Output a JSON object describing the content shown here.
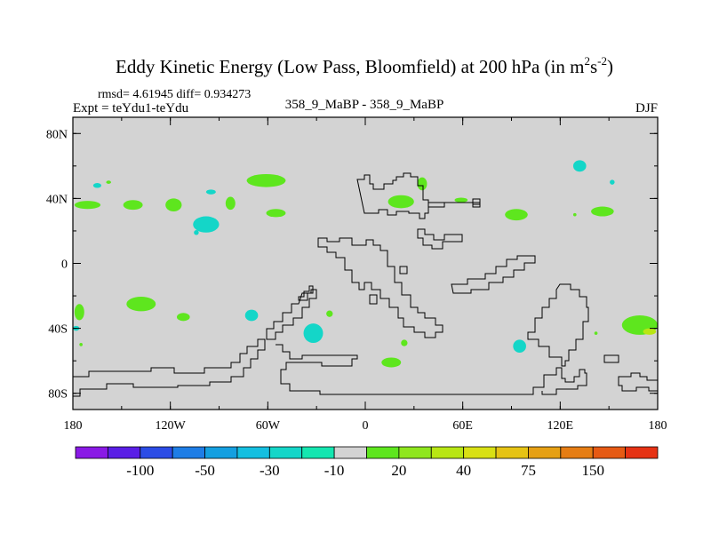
{
  "chart_data": {
    "type": "heatmap",
    "title_main": "Eddy Kinetic Energy (Low Pass, Bloomfield) at 200 hPa (in m",
    "title_sup1": "2",
    "title_mid": "s",
    "title_sup2": "-2",
    "title_end": ")",
    "stats": "rmsd= 4.61945 diff= 0.934273",
    "expt_label": "Expt = teYdu1-teYdu",
    "center_label": "358_9_MaBP - 358_9_MaBP",
    "season_label": "DJF",
    "x_ticks": [
      {
        "v": -180,
        "label": "180"
      },
      {
        "v": -120,
        "label": "120W"
      },
      {
        "v": -60,
        "label": "60W"
      },
      {
        "v": 0,
        "label": "0"
      },
      {
        "v": 60,
        "label": "60E"
      },
      {
        "v": 120,
        "label": "120E"
      },
      {
        "v": 180,
        "label": "180"
      }
    ],
    "y_ticks": [
      {
        "v": 80,
        "label": "80N"
      },
      {
        "v": 40,
        "label": "40N"
      },
      {
        "v": 0,
        "label": "0"
      },
      {
        "v": -40,
        "label": "40S"
      },
      {
        "v": -80,
        "label": "80S"
      }
    ],
    "xlim": [
      -180,
      180
    ],
    "ylim": [
      -90,
      90
    ],
    "colorbar": {
      "colors": [
        "#8a19e6",
        "#5a1ee6",
        "#2b4ce6",
        "#1e7de6",
        "#149fe0",
        "#14bfe0",
        "#14d6c8",
        "#14e6b0",
        "#d3d3d3",
        "#5ee61e",
        "#8fe61e",
        "#b8e614",
        "#d9e014",
        "#e6c314",
        "#e6a014",
        "#e67d14",
        "#e65a14",
        "#e63214"
      ],
      "ticks": [
        {
          "after_box": 2,
          "label": "-100"
        },
        {
          "after_box": 4,
          "label": "-50"
        },
        {
          "after_box": 6,
          "label": "-30"
        },
        {
          "after_box": 8,
          "label": "-10"
        },
        {
          "after_box": 10,
          "label": "20"
        },
        {
          "after_box": 12,
          "label": "40"
        },
        {
          "after_box": 14,
          "label": "75"
        },
        {
          "after_box": 16,
          "label": "150"
        }
      ]
    },
    "anomaly_regions": [
      {
        "lon": -171,
        "lat": 36,
        "rlon": 8,
        "rlat": 2.5,
        "color": "#5ee61e"
      },
      {
        "lon": -143,
        "lat": 36,
        "rlon": 6,
        "rlat": 3,
        "color": "#5ee61e"
      },
      {
        "lon": -118,
        "lat": 36,
        "rlon": 5,
        "rlat": 4,
        "color": "#5ee61e"
      },
      {
        "lon": -165,
        "lat": 48,
        "rlon": 2.5,
        "rlat": 1.5,
        "color": "#14d6c8"
      },
      {
        "lon": -158,
        "lat": 50,
        "rlon": 1.5,
        "rlat": 1,
        "color": "#5ee61e"
      },
      {
        "lon": -95,
        "lat": 44,
        "rlon": 3,
        "rlat": 1.5,
        "color": "#14d6c8"
      },
      {
        "lon": -83,
        "lat": 37,
        "rlon": 3,
        "rlat": 4,
        "color": "#5ee61e"
      },
      {
        "lon": -98,
        "lat": 24,
        "rlon": 8,
        "rlat": 5,
        "color": "#14d6c8"
      },
      {
        "lon": -104,
        "lat": 19,
        "rlon": 1.5,
        "rlat": 1.5,
        "color": "#14d6c8"
      },
      {
        "lon": -61,
        "lat": 51,
        "rlon": 12,
        "rlat": 4,
        "color": "#5ee61e"
      },
      {
        "lon": -55,
        "lat": 31,
        "rlon": 6,
        "rlat": 2.5,
        "color": "#5ee61e"
      },
      {
        "lon": 22,
        "lat": 38,
        "rlon": 8,
        "rlat": 4,
        "color": "#5ee61e"
      },
      {
        "lon": 35,
        "lat": 49,
        "rlon": 3,
        "rlat": 4,
        "color": "#5ee61e"
      },
      {
        "lon": 59,
        "lat": 39,
        "rlon": 4,
        "rlat": 1.5,
        "color": "#5ee61e"
      },
      {
        "lon": 93,
        "lat": 30,
        "rlon": 7,
        "rlat": 3.5,
        "color": "#5ee61e"
      },
      {
        "lon": 132,
        "lat": 60,
        "rlon": 4,
        "rlat": 3.5,
        "color": "#14d6c8"
      },
      {
        "lon": 152,
        "lat": 50,
        "rlon": 1.5,
        "rlat": 1.5,
        "color": "#14d6c8"
      },
      {
        "lon": 146,
        "lat": 32,
        "rlon": 7,
        "rlat": 3,
        "color": "#5ee61e"
      },
      {
        "lon": 129,
        "lat": 30,
        "rlon": 1,
        "rlat": 1,
        "color": "#5ee61e"
      },
      {
        "lon": -138,
        "lat": -25,
        "rlon": 9,
        "rlat": 4.5,
        "color": "#5ee61e"
      },
      {
        "lon": -176,
        "lat": -30,
        "rlon": 3,
        "rlat": 5,
        "color": "#5ee61e"
      },
      {
        "lon": -178,
        "lat": -40,
        "rlon": 2,
        "rlat": 1.5,
        "color": "#14d6c8"
      },
      {
        "lon": -175,
        "lat": -50,
        "rlon": 1,
        "rlat": 1,
        "color": "#5ee61e"
      },
      {
        "lon": -112,
        "lat": -33,
        "rlon": 4,
        "rlat": 2.5,
        "color": "#5ee61e"
      },
      {
        "lon": -70,
        "lat": -32,
        "rlon": 4,
        "rlat": 3.5,
        "color": "#14d6c8"
      },
      {
        "lon": -32,
        "lat": -43,
        "rlon": 6,
        "rlat": 6,
        "color": "#14d6c8"
      },
      {
        "lon": -22,
        "lat": -31,
        "rlon": 2,
        "rlat": 2,
        "color": "#5ee61e"
      },
      {
        "lon": 24,
        "lat": -49,
        "rlon": 2,
        "rlat": 2,
        "color": "#5ee61e"
      },
      {
        "lon": 16,
        "lat": -61,
        "rlon": 6,
        "rlat": 3,
        "color": "#5ee61e"
      },
      {
        "lon": 95,
        "lat": -51,
        "rlon": 4,
        "rlat": 4,
        "color": "#14d6c8"
      },
      {
        "lon": 169,
        "lat": -38,
        "rlon": 11,
        "rlat": 6,
        "color": "#5ee61e"
      },
      {
        "lon": 175,
        "lat": -42,
        "rlon": 4,
        "rlat": 2,
        "color": "#b8e614"
      },
      {
        "lon": 142,
        "lat": -43,
        "rlon": 1,
        "rlat": 1,
        "color": "#5ee61e"
      }
    ]
  }
}
